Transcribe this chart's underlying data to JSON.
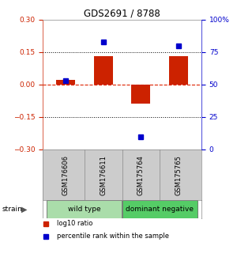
{
  "title": "GDS2691 / 8788",
  "samples": [
    "GSM176606",
    "GSM176611",
    "GSM175764",
    "GSM175765"
  ],
  "log10_ratio": [
    0.02,
    0.13,
    -0.09,
    0.13
  ],
  "percentile_rank": [
    53,
    83,
    10,
    80
  ],
  "bar_color": "#cc2200",
  "dot_color": "#0000cc",
  "left_ylim": [
    -0.3,
    0.3
  ],
  "right_ylim": [
    0,
    100
  ],
  "left_yticks": [
    0.3,
    0.15,
    0,
    -0.15,
    -0.3
  ],
  "right_yticks": [
    100,
    75,
    50,
    25,
    0
  ],
  "right_yticklabels": [
    "100%",
    "75",
    "50",
    "25",
    "0"
  ],
  "dotted_lines": [
    0.15,
    -0.15
  ],
  "zero_line_color": "#dd2200",
  "groups": [
    {
      "label": "wild type",
      "indices": [
        0,
        1
      ],
      "color": "#aaddaa"
    },
    {
      "label": "dominant negative",
      "indices": [
        2,
        3
      ],
      "color": "#55cc66"
    }
  ],
  "legend": [
    {
      "color": "#cc2200",
      "label": "log10 ratio"
    },
    {
      "color": "#0000cc",
      "label": "percentile rank within the sample"
    }
  ],
  "strain_label": "strain",
  "left_axis_color": "#cc2200",
  "right_axis_color": "#0000cc",
  "bg_color": "#ffffff",
  "plot_bg": "#ffffff",
  "bar_width": 0.5,
  "dot_size": 5,
  "sample_box_color": "#cccccc",
  "sample_box_edge": "#888888"
}
